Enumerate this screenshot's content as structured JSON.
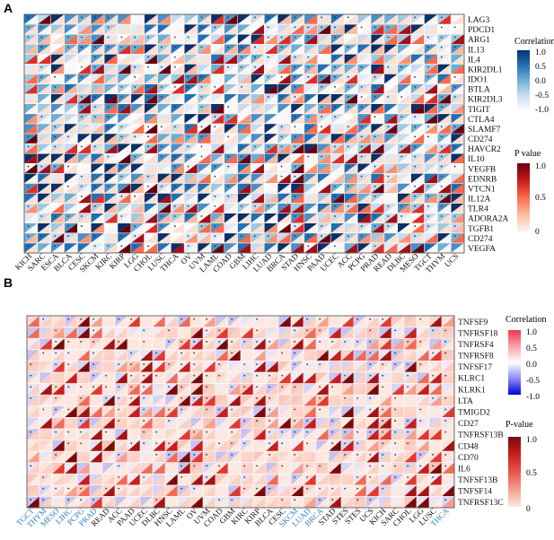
{
  "panels": [
    {
      "letter": "A",
      "rows": [
        "LAG3",
        "PDCD1",
        "ARG1",
        "IL13",
        "IL4",
        "KIR2DL1",
        "IDO1",
        "BTLA",
        "KIR2DL3",
        "TIGIT",
        "CTLA4",
        "SLAMF7",
        "CD274",
        "HAVCR2",
        "IL10",
        "VEGFB",
        "EDNRB",
        "VTCN1",
        "IL12A",
        "TLR4",
        "ADORA2A",
        "TGFB1",
        "CD274",
        "VEGFA"
      ],
      "cols": [
        "KICH",
        "SARC",
        "ESCA",
        "BLCA",
        "CESC",
        "SKCM",
        "KIRC",
        "KIRP",
        "LGG",
        "CHOL",
        "LUSC",
        "THCA",
        "OV",
        "UVM",
        "LAML",
        "COAD",
        "GBM",
        "LIHC",
        "LUAD",
        "BRCA",
        "STAD",
        "HNSC",
        "PAAD",
        "UCEC",
        "ACC",
        "PCPG",
        "PRAD",
        "READ",
        "DLBC",
        "MESO",
        "TGCT",
        "THYM",
        "UCS"
      ],
      "highlight_cols": [],
      "corr_title": "Correlation",
      "corr_ticks": [
        "1.0",
        "0.5",
        "0.0",
        "-0.5",
        "-1.0"
      ],
      "p_title": "P value",
      "p_ticks": [
        "1.0",
        "0.5",
        "0"
      ],
      "corr_colors": [
        "#08306b",
        "#2171b5",
        "#6baed6",
        "#c6dbef",
        "#f7fbff"
      ],
      "p_colors": [
        "#67000d",
        "#cb181d",
        "#fb6a4a",
        "#fcbba1",
        "#fff5f0"
      ],
      "bg_color": "#d6e4f0"
    },
    {
      "letter": "B",
      "rows": [
        "TNFSF9",
        "TNFRSF18",
        "TNFRSF4",
        "TNFRSF8",
        "TNFSF17",
        "KLRC1",
        "KLRK1",
        "LTA",
        "TMIGD2",
        "CD27",
        "TNFRSF13B",
        "CD48",
        "CD70",
        "IL6",
        "TNFSF13B",
        "TNFSF14",
        "TNFRSF13C"
      ],
      "cols": [
        "TGCT",
        "THYM",
        "MESO",
        "LIHC",
        "PCPG",
        "PRAD",
        "READ",
        "ACC",
        "PAAD",
        "UCEC",
        "DLBC",
        "HNSC",
        "LAML",
        "OV",
        "UVM",
        "COAD",
        "GBM",
        "KIRC",
        "KIRP",
        "BLCA",
        "CESC",
        "SKCM",
        "LUAD",
        "BRCA",
        "STAD",
        "STES",
        "STES",
        "UCS",
        "KICH",
        "SARC",
        "CHOL",
        "LGG",
        "LUSC",
        "THCA"
      ],
      "highlight_cols": [
        0,
        1,
        2,
        3,
        4,
        5,
        21,
        22,
        23,
        33
      ],
      "corr_title": "Correlation",
      "corr_ticks": [
        "1.0",
        "0.5",
        "0.0",
        "-0.5",
        "-1.0"
      ],
      "p_title": "P-value",
      "p_ticks": [
        "1.0",
        "0.5",
        "0"
      ],
      "corr_colors": [
        "#f4354a",
        "#f9a0aa",
        "#ffffff",
        "#8c8cf0",
        "#0000e0"
      ],
      "p_colors": [
        "#7a0a0a",
        "#c81e1e",
        "#e8554d",
        "#f4a090",
        "#fde8e0"
      ],
      "bg_color": "#fbe3dc"
    }
  ]
}
